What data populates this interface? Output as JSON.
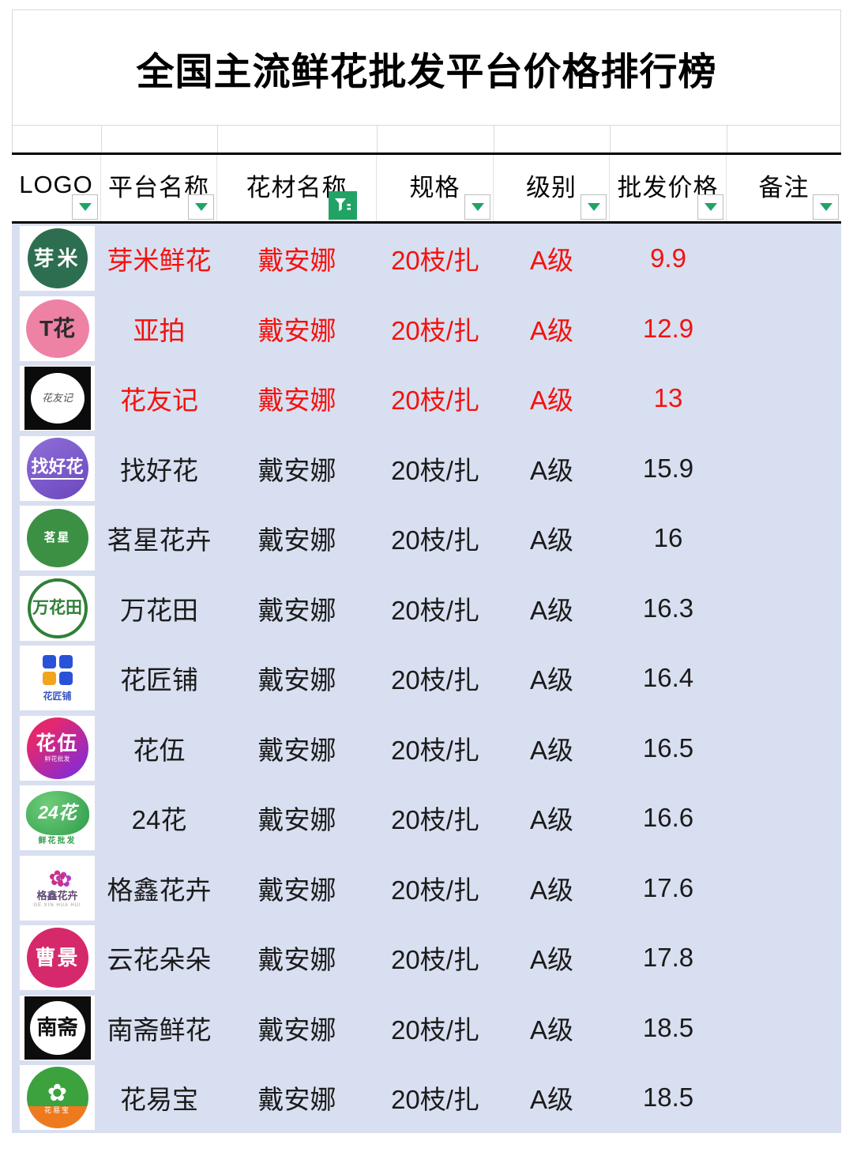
{
  "title": "全国主流鲜花批发平台价格排行榜",
  "header": {
    "columns": [
      {
        "label": "LOGO",
        "filter": "dropdown"
      },
      {
        "label": "平台名称",
        "filter": "dropdown"
      },
      {
        "label": "花材名称",
        "filter": "active-funnel"
      },
      {
        "label": "规格",
        "filter": "dropdown"
      },
      {
        "label": "级别",
        "filter": "dropdown"
      },
      {
        "label": "批发价格",
        "filter": "dropdown"
      },
      {
        "label": "备注",
        "filter": "dropdown"
      }
    ]
  },
  "rows": [
    {
      "platform": "芽米鲜花",
      "flower": "戴安娜",
      "spec": "20枝/扎",
      "grade": "A级",
      "price": "9.9",
      "note": "",
      "highlighted": true,
      "logo": {
        "style": "yami",
        "text": "芽米"
      }
    },
    {
      "platform": "亚拍",
      "flower": "戴安娜",
      "spec": "20枝/扎",
      "grade": "A级",
      "price": "12.9",
      "note": "",
      "highlighted": true,
      "logo": {
        "style": "yapai",
        "text": "T花"
      }
    },
    {
      "platform": "花友记",
      "flower": "戴安娜",
      "spec": "20枝/扎",
      "grade": "A级",
      "price": "13",
      "note": "",
      "highlighted": true,
      "logo": {
        "style": "huayouji",
        "text": "花友记"
      }
    },
    {
      "platform": "找好花",
      "flower": "戴安娜",
      "spec": "20枝/扎",
      "grade": "A级",
      "price": "15.9",
      "note": "",
      "highlighted": false,
      "logo": {
        "style": "zhaohaohua",
        "text": "找好花"
      }
    },
    {
      "platform": "茗星花卉",
      "flower": "戴安娜",
      "spec": "20枝/扎",
      "grade": "A级",
      "price": "16",
      "note": "",
      "highlighted": false,
      "logo": {
        "style": "mingxing",
        "text": "茗星"
      }
    },
    {
      "platform": "万花田",
      "flower": "戴安娜",
      "spec": "20枝/扎",
      "grade": "A级",
      "price": "16.3",
      "note": "",
      "highlighted": false,
      "logo": {
        "style": "wanhuatian",
        "text": "万花田"
      }
    },
    {
      "platform": "花匠铺",
      "flower": "戴安娜",
      "spec": "20枝/扎",
      "grade": "A级",
      "price": "16.4",
      "note": "",
      "highlighted": false,
      "logo": {
        "style": "huajiangpu",
        "text": "花匠铺"
      }
    },
    {
      "platform": "花伍",
      "flower": "戴安娜",
      "spec": "20枝/扎",
      "grade": "A级",
      "price": "16.5",
      "note": "",
      "highlighted": false,
      "logo": {
        "style": "huawu",
        "text": "花伍",
        "sub": "鲜花批发"
      }
    },
    {
      "platform": "24花",
      "flower": "戴安娜",
      "spec": "20枝/扎",
      "grade": "A级",
      "price": "16.6",
      "note": "",
      "highlighted": false,
      "logo": {
        "style": "hua24",
        "text": "24花",
        "sub": "鲜花批发"
      }
    },
    {
      "platform": "格鑫花卉",
      "flower": "戴安娜",
      "spec": "20枝/扎",
      "grade": "A级",
      "price": "17.6",
      "note": "",
      "highlighted": false,
      "logo": {
        "style": "gexin",
        "text": "格鑫花卉",
        "sub": "GE XIN HUA HUI"
      }
    },
    {
      "platform": "云花朵朵",
      "flower": "戴安娜",
      "spec": "20枝/扎",
      "grade": "A级",
      "price": "17.8",
      "note": "",
      "highlighted": false,
      "logo": {
        "style": "yunhua",
        "text": "曹景"
      }
    },
    {
      "platform": "南斋鲜花",
      "flower": "戴安娜",
      "spec": "20枝/扎",
      "grade": "A级",
      "price": "18.5",
      "note": "",
      "highlighted": false,
      "logo": {
        "style": "nanzhai",
        "text": "南斋"
      }
    },
    {
      "platform": "花易宝",
      "flower": "戴安娜",
      "spec": "20枝/扎",
      "grade": "A级",
      "price": "18.5",
      "note": "",
      "highlighted": false,
      "logo": {
        "style": "huayibao",
        "text": "花易宝"
      }
    }
  ],
  "colors": {
    "filter_green": "#21a366",
    "highlight_red": "#f3120e",
    "data_area_bg": "#d8dff0",
    "header_border": "#000000",
    "grid_line": "#d9d9d9",
    "text_black": "#1a1a1a"
  }
}
